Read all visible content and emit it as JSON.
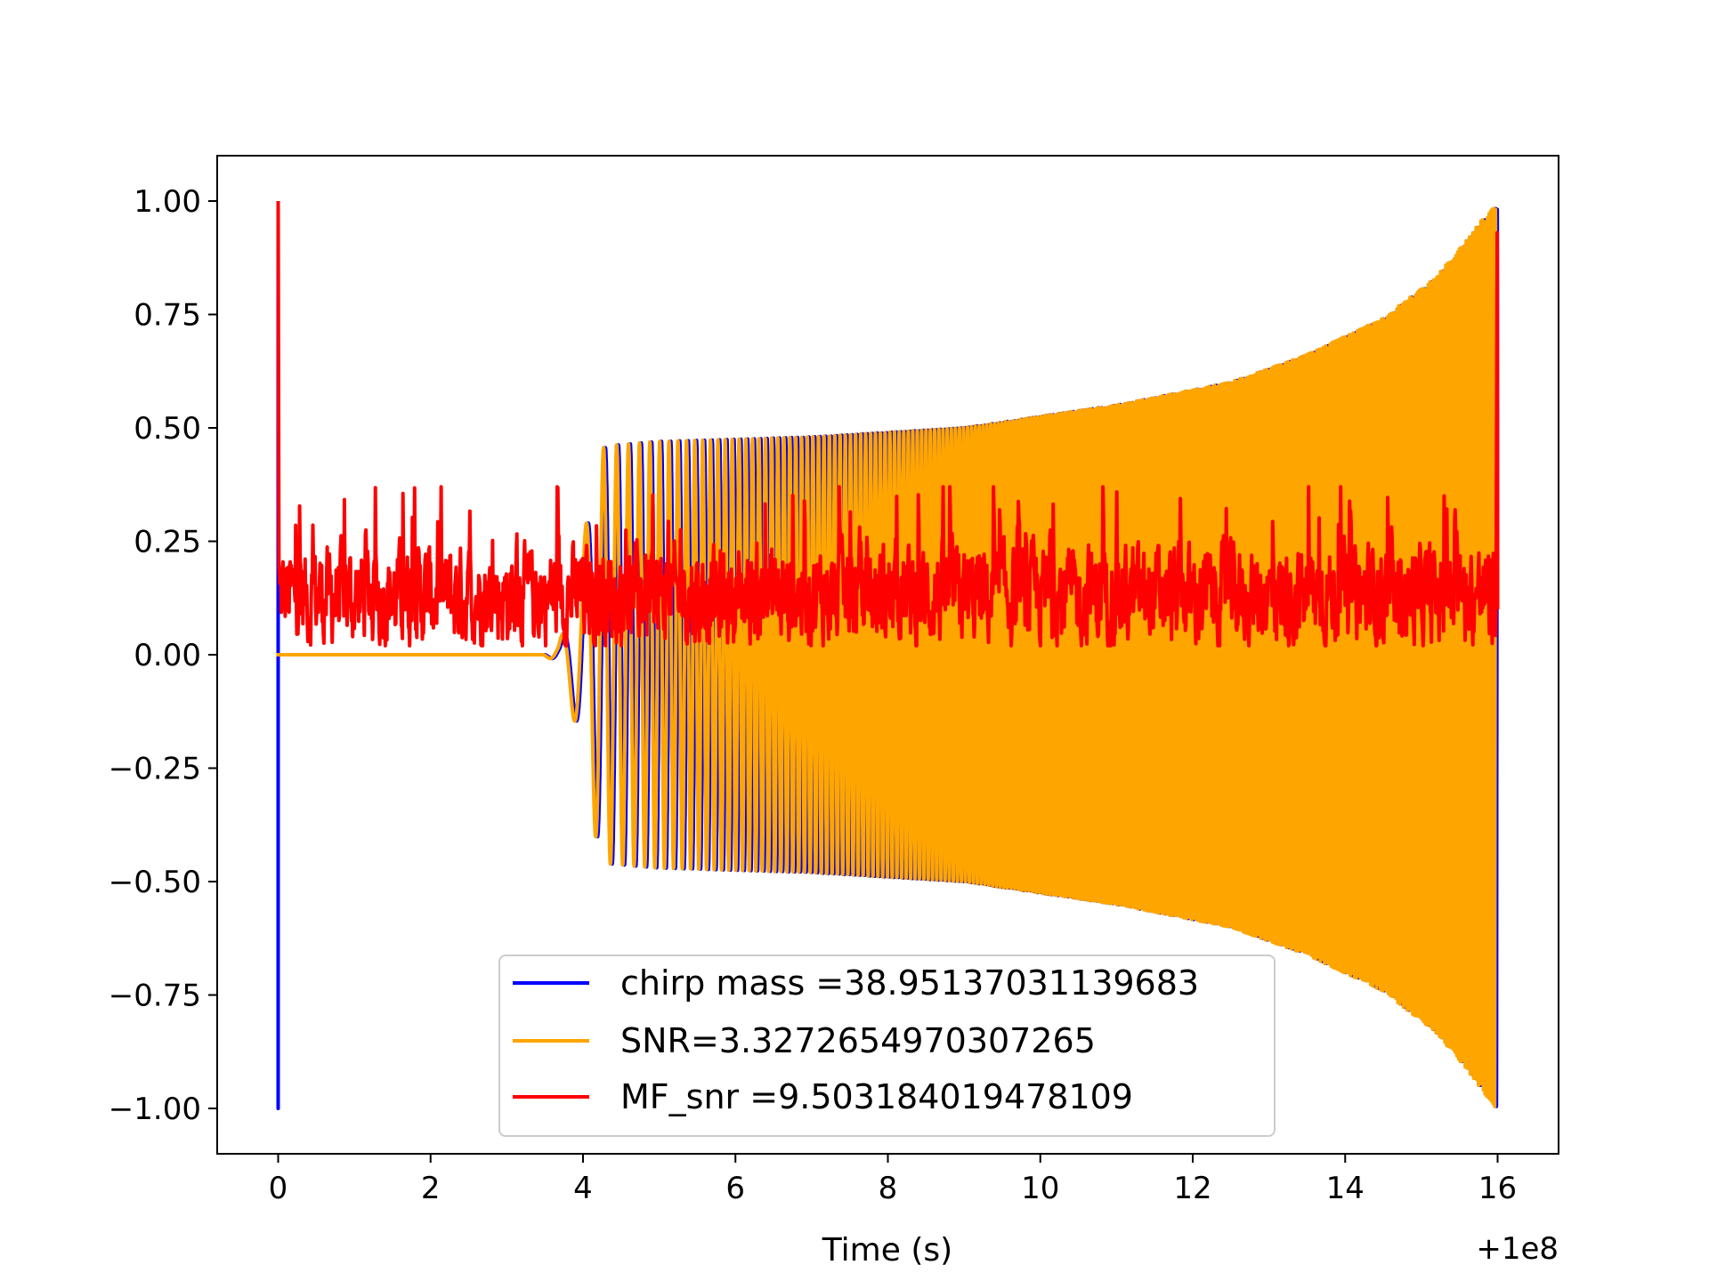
{
  "chart_data": {
    "type": "line",
    "title": "",
    "xlabel": "Time (s)",
    "ylabel": "",
    "x_offset_label": "+1e8",
    "xlim": [
      -0.8,
      16.8
    ],
    "ylim": [
      -1.1,
      1.1
    ],
    "x_ticks": [
      0,
      2,
      4,
      6,
      8,
      10,
      12,
      14,
      16
    ],
    "x_tick_labels": [
      "0",
      "2",
      "4",
      "6",
      "8",
      "10",
      "12",
      "14",
      "16"
    ],
    "y_ticks": [
      -1.0,
      -0.75,
      -0.5,
      -0.25,
      0.0,
      0.25,
      0.5,
      0.75,
      1.0
    ],
    "y_tick_labels": [
      "−1.00",
      "−0.75",
      "−0.50",
      "−0.25",
      "0.00",
      "0.25",
      "0.50",
      "0.75",
      "1.00"
    ],
    "grid": false,
    "legend_position": "lower-center",
    "series": [
      {
        "name": "chirp mass =38.95137031139683",
        "color": "#0000ff",
        "shape": "template",
        "spike_at": 0.0,
        "spike_range": [
          -1.0,
          1.0
        ],
        "envelope": [
          [
            0.0,
            0.0
          ],
          [
            3.5,
            0.0
          ],
          [
            3.7,
            0.02
          ],
          [
            3.85,
            0.1
          ],
          [
            4.0,
            0.22
          ],
          [
            4.15,
            0.38
          ],
          [
            4.3,
            0.46
          ],
          [
            5.0,
            0.47
          ],
          [
            7.0,
            0.48
          ],
          [
            9.0,
            0.5
          ],
          [
            11.0,
            0.55
          ],
          [
            12.5,
            0.6
          ],
          [
            13.5,
            0.66
          ],
          [
            14.5,
            0.74
          ],
          [
            15.2,
            0.83
          ],
          [
            15.6,
            0.91
          ],
          [
            16.0,
            1.0
          ]
        ]
      },
      {
        "name": "SNR=3.3272654970307265",
        "color": "#ffa500",
        "shape": "template",
        "envelope": [
          [
            0.0,
            0.0
          ],
          [
            3.5,
            0.0
          ],
          [
            3.7,
            0.02
          ],
          [
            3.85,
            0.1
          ],
          [
            4.0,
            0.22
          ],
          [
            4.15,
            0.38
          ],
          [
            4.3,
            0.46
          ],
          [
            5.0,
            0.47
          ],
          [
            7.0,
            0.48
          ],
          [
            9.0,
            0.5
          ],
          [
            11.0,
            0.55
          ],
          [
            12.5,
            0.6
          ],
          [
            13.5,
            0.66
          ],
          [
            14.5,
            0.74
          ],
          [
            15.2,
            0.83
          ],
          [
            15.6,
            0.91
          ],
          [
            16.0,
            1.0
          ]
        ],
        "cycles": [
          [
            4.0,
            3
          ],
          [
            4.4,
            6
          ],
          [
            6.0,
            11
          ],
          [
            8.0,
            16
          ],
          [
            10.0,
            22
          ],
          [
            12.0,
            28
          ],
          [
            14.0,
            36
          ],
          [
            16.0,
            48
          ]
        ]
      },
      {
        "name": "MF_snr =9.503184019478109",
        "color": "#ff0000",
        "shape": "noise",
        "start_spike": 1.0,
        "end_spike": 0.93,
        "baseline": 0.13,
        "range": [
          0.02,
          0.37
        ]
      }
    ]
  }
}
